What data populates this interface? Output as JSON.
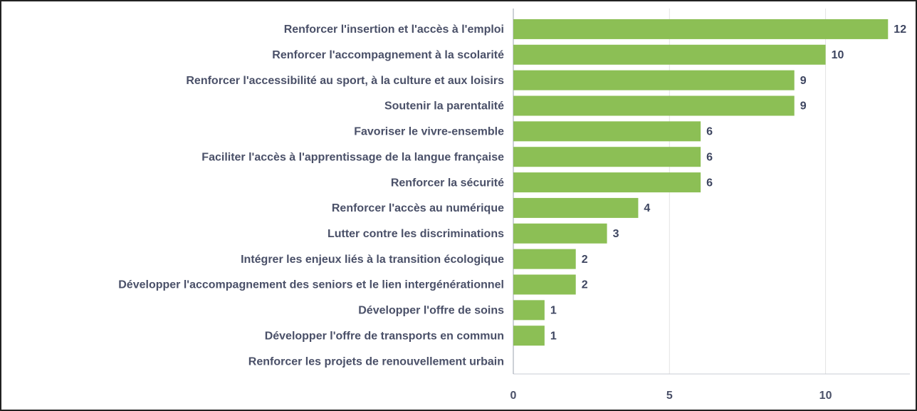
{
  "chart_data": {
    "type": "barh",
    "categories": [
      "Renforcer l'insertion et l'accès à l'emploi",
      "Renforcer l'accompagnement à la scolarité",
      "Renforcer l'accessibilité au sport, à la culture et aux loisirs",
      "Soutenir la parentalité",
      "Favoriser le vivre-ensemble",
      "Faciliter l'accès à l'apprentissage de la langue française",
      "Renforcer la sécurité",
      "Renforcer l'accès au numérique",
      "Lutter contre les discriminations",
      "Intégrer les enjeux liés à la transition écologique",
      "Développer l'accompagnement des seniors et le lien intergénérationnel",
      "Développer l'offre de soins",
      "Développer l'offre de transports en commun",
      "Renforcer les projets de renouvellement urbain"
    ],
    "values": [
      12,
      10,
      9,
      9,
      6,
      6,
      6,
      4,
      3,
      2,
      2,
      1,
      1,
      0
    ],
    "color": "#8cbf55",
    "xlim": [
      0,
      12.7
    ],
    "xticks": [
      0,
      5,
      10
    ],
    "grid": true
  }
}
